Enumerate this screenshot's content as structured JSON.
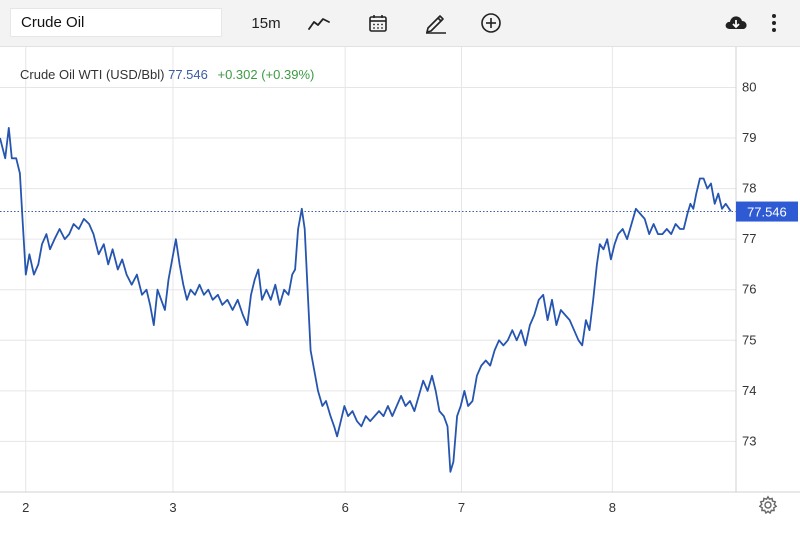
{
  "toolbar": {
    "symbol": "Crude Oil",
    "interval": "15m",
    "icons": [
      "chart-type-icon",
      "calendar-icon",
      "draw-pencil-icon",
      "add-compare-icon",
      "download-icon",
      "more-icon"
    ]
  },
  "legend": {
    "name": "Crude Oil WTI (USD/Bbl)",
    "price": "77.546",
    "change": "+0.302 (+0.39%)"
  },
  "colors": {
    "line": "#2655b0",
    "price_tag": "#2e5bd4",
    "up": "#3d9a44",
    "grid": "#e6e6e6"
  },
  "chart_data": {
    "type": "line",
    "title": "Crude Oil WTI (USD/Bbl)",
    "xlabel": "",
    "ylabel": "",
    "ylim": [
      72.0,
      80.8
    ],
    "x_range": [
      0,
      1
    ],
    "y_ticks": [
      73,
      74,
      75,
      76,
      77,
      78,
      79,
      80
    ],
    "x_ticks": [
      {
        "label": "2",
        "x": 0.035
      },
      {
        "label": "3",
        "x": 0.235
      },
      {
        "label": "6",
        "x": 0.469
      },
      {
        "label": "7",
        "x": 0.627
      },
      {
        "label": "8",
        "x": 0.832
      }
    ],
    "current_value": 77.546,
    "current_label": "77.546",
    "grid": true,
    "series": [
      {
        "points": [
          [
            0.0,
            79.0
          ],
          [
            0.007,
            78.6
          ],
          [
            0.012,
            79.2
          ],
          [
            0.016,
            78.6
          ],
          [
            0.022,
            78.6
          ],
          [
            0.027,
            78.3
          ],
          [
            0.031,
            77.3
          ],
          [
            0.035,
            76.3
          ],
          [
            0.04,
            76.7
          ],
          [
            0.046,
            76.3
          ],
          [
            0.052,
            76.5
          ],
          [
            0.057,
            76.9
          ],
          [
            0.063,
            77.1
          ],
          [
            0.068,
            76.8
          ],
          [
            0.074,
            77.0
          ],
          [
            0.081,
            77.2
          ],
          [
            0.088,
            77.0
          ],
          [
            0.094,
            77.1
          ],
          [
            0.1,
            77.3
          ],
          [
            0.107,
            77.2
          ],
          [
            0.114,
            77.4
          ],
          [
            0.121,
            77.3
          ],
          [
            0.127,
            77.1
          ],
          [
            0.134,
            76.7
          ],
          [
            0.141,
            76.9
          ],
          [
            0.147,
            76.5
          ],
          [
            0.153,
            76.8
          ],
          [
            0.16,
            76.4
          ],
          [
            0.166,
            76.6
          ],
          [
            0.172,
            76.3
          ],
          [
            0.179,
            76.1
          ],
          [
            0.186,
            76.3
          ],
          [
            0.193,
            75.9
          ],
          [
            0.199,
            76.0
          ],
          [
            0.204,
            75.7
          ],
          [
            0.209,
            75.3
          ],
          [
            0.214,
            76.0
          ],
          [
            0.219,
            75.8
          ],
          [
            0.224,
            75.6
          ],
          [
            0.229,
            76.2
          ],
          [
            0.234,
            76.6
          ],
          [
            0.239,
            77.0
          ],
          [
            0.244,
            76.5
          ],
          [
            0.249,
            76.1
          ],
          [
            0.254,
            75.8
          ],
          [
            0.259,
            76.0
          ],
          [
            0.265,
            75.9
          ],
          [
            0.271,
            76.1
          ],
          [
            0.277,
            75.9
          ],
          [
            0.283,
            76.0
          ],
          [
            0.289,
            75.8
          ],
          [
            0.296,
            75.9
          ],
          [
            0.302,
            75.7
          ],
          [
            0.309,
            75.8
          ],
          [
            0.316,
            75.6
          ],
          [
            0.323,
            75.8
          ],
          [
            0.33,
            75.5
          ],
          [
            0.336,
            75.3
          ],
          [
            0.341,
            75.9
          ],
          [
            0.346,
            76.2
          ],
          [
            0.351,
            76.4
          ],
          [
            0.356,
            75.8
          ],
          [
            0.362,
            76.0
          ],
          [
            0.368,
            75.8
          ],
          [
            0.374,
            76.1
          ],
          [
            0.38,
            75.7
          ],
          [
            0.386,
            76.0
          ],
          [
            0.392,
            75.9
          ],
          [
            0.397,
            76.3
          ],
          [
            0.401,
            76.4
          ],
          [
            0.405,
            77.2
          ],
          [
            0.41,
            77.6
          ],
          [
            0.414,
            77.2
          ],
          [
            0.418,
            76.0
          ],
          [
            0.422,
            74.8
          ],
          [
            0.427,
            74.4
          ],
          [
            0.432,
            74.0
          ],
          [
            0.438,
            73.7
          ],
          [
            0.443,
            73.8
          ],
          [
            0.449,
            73.5
          ],
          [
            0.454,
            73.3
          ],
          [
            0.458,
            73.1
          ],
          [
            0.463,
            73.4
          ],
          [
            0.468,
            73.7
          ],
          [
            0.473,
            73.5
          ],
          [
            0.479,
            73.6
          ],
          [
            0.485,
            73.4
          ],
          [
            0.491,
            73.3
          ],
          [
            0.497,
            73.5
          ],
          [
            0.503,
            73.4
          ],
          [
            0.509,
            73.5
          ],
          [
            0.515,
            73.6
          ],
          [
            0.521,
            73.5
          ],
          [
            0.527,
            73.7
          ],
          [
            0.533,
            73.5
          ],
          [
            0.539,
            73.7
          ],
          [
            0.545,
            73.9
          ],
          [
            0.551,
            73.7
          ],
          [
            0.557,
            73.8
          ],
          [
            0.563,
            73.6
          ],
          [
            0.569,
            73.9
          ],
          [
            0.575,
            74.2
          ],
          [
            0.581,
            74.0
          ],
          [
            0.587,
            74.3
          ],
          [
            0.592,
            74.0
          ],
          [
            0.597,
            73.6
          ],
          [
            0.603,
            73.5
          ],
          [
            0.608,
            73.3
          ],
          [
            0.612,
            72.4
          ],
          [
            0.616,
            72.6
          ],
          [
            0.621,
            73.5
          ],
          [
            0.626,
            73.7
          ],
          [
            0.631,
            74.0
          ],
          [
            0.636,
            73.7
          ],
          [
            0.642,
            73.8
          ],
          [
            0.648,
            74.3
          ],
          [
            0.654,
            74.5
          ],
          [
            0.66,
            74.6
          ],
          [
            0.666,
            74.5
          ],
          [
            0.672,
            74.8
          ],
          [
            0.678,
            75.0
          ],
          [
            0.684,
            74.9
          ],
          [
            0.69,
            75.0
          ],
          [
            0.696,
            75.2
          ],
          [
            0.702,
            75.0
          ],
          [
            0.708,
            75.2
          ],
          [
            0.714,
            74.9
          ],
          [
            0.72,
            75.3
          ],
          [
            0.726,
            75.5
          ],
          [
            0.732,
            75.8
          ],
          [
            0.738,
            75.9
          ],
          [
            0.744,
            75.4
          ],
          [
            0.75,
            75.8
          ],
          [
            0.756,
            75.3
          ],
          [
            0.762,
            75.6
          ],
          [
            0.768,
            75.5
          ],
          [
            0.774,
            75.4
          ],
          [
            0.78,
            75.2
          ],
          [
            0.786,
            75.0
          ],
          [
            0.791,
            74.9
          ],
          [
            0.796,
            75.4
          ],
          [
            0.801,
            75.2
          ],
          [
            0.806,
            75.8
          ],
          [
            0.811,
            76.5
          ],
          [
            0.815,
            76.9
          ],
          [
            0.82,
            76.8
          ],
          [
            0.825,
            77.0
          ],
          [
            0.83,
            76.6
          ],
          [
            0.835,
            76.9
          ],
          [
            0.84,
            77.1
          ],
          [
            0.846,
            77.2
          ],
          [
            0.852,
            77.0
          ],
          [
            0.858,
            77.3
          ],
          [
            0.864,
            77.6
          ],
          [
            0.87,
            77.5
          ],
          [
            0.876,
            77.4
          ],
          [
            0.882,
            77.1
          ],
          [
            0.888,
            77.3
          ],
          [
            0.894,
            77.1
          ],
          [
            0.9,
            77.1
          ],
          [
            0.906,
            77.2
          ],
          [
            0.912,
            77.1
          ],
          [
            0.918,
            77.3
          ],
          [
            0.924,
            77.2
          ],
          [
            0.929,
            77.2
          ],
          [
            0.934,
            77.5
          ],
          [
            0.938,
            77.7
          ],
          [
            0.942,
            77.6
          ],
          [
            0.946,
            77.9
          ],
          [
            0.951,
            78.2
          ],
          [
            0.956,
            78.2
          ],
          [
            0.961,
            78.0
          ],
          [
            0.966,
            78.1
          ],
          [
            0.971,
            77.7
          ],
          [
            0.976,
            77.9
          ],
          [
            0.981,
            77.6
          ],
          [
            0.986,
            77.7
          ],
          [
            0.993,
            77.55
          ]
        ]
      }
    ]
  }
}
